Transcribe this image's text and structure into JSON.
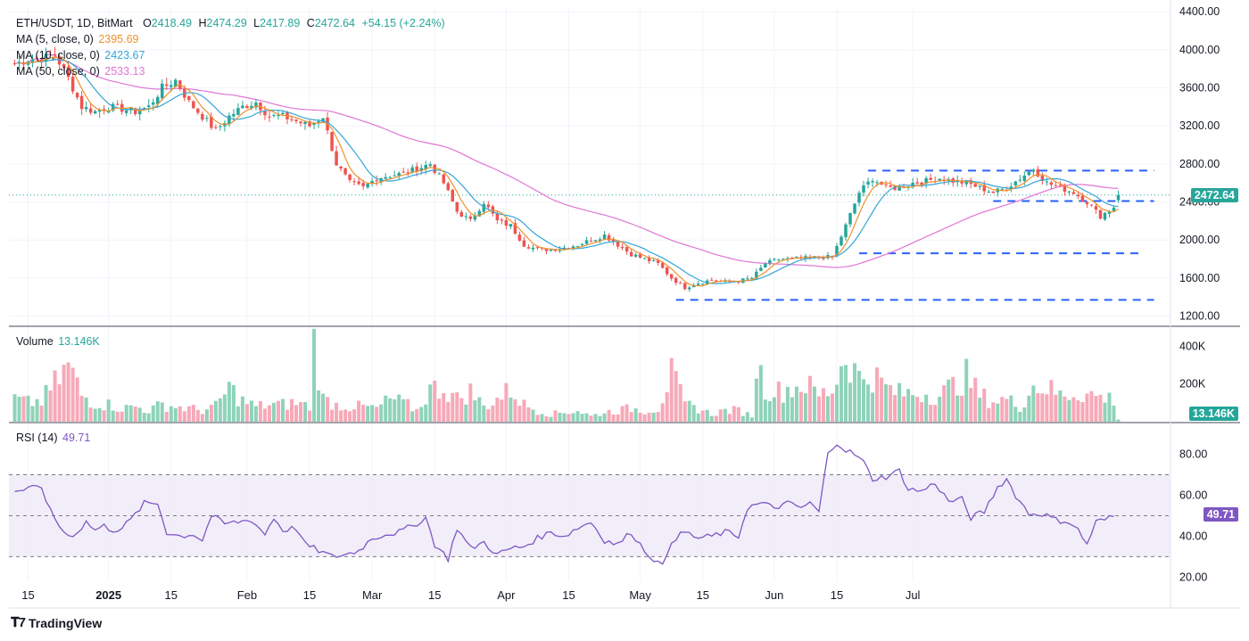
{
  "header": {
    "symbol": "ETH/USDT, 1D, BitMart",
    "open_label": "O",
    "open": "2418.49",
    "high_label": "H",
    "high": "2474.29",
    "low_label": "L",
    "low": "2417.89",
    "close_label": "C",
    "close": "2472.64",
    "change": "+54.15 (+2.24%)"
  },
  "ma_legend": [
    {
      "label": "MA (5, close, 0)",
      "value": "2395.69",
      "color": "#f0912e"
    },
    {
      "label": "MA (10, close, 0)",
      "value": "2423.67",
      "color": "#35a5d6"
    },
    {
      "label": "MA (50, close, 0)",
      "value": "2533.13",
      "color": "#e075d6"
    }
  ],
  "volume_legend": {
    "label": "Volume",
    "value": "13.146K"
  },
  "rsi_legend": {
    "label": "RSI (14)",
    "value": "49.71"
  },
  "price_badge": "2472.64",
  "volume_badge": "13.146K",
  "rsi_badge": "49.71",
  "brand": "TradingView",
  "colors": {
    "up": "#26a69a",
    "up_light": "#8fd3b9",
    "down": "#ef5350",
    "down_light": "#f7a9b8",
    "ma5": "#f0912e",
    "ma10": "#35a5d6",
    "ma50": "#e075d6",
    "rsi": "#7e57c2",
    "level": "#2962ff"
  },
  "chart_data": {
    "type": "candlestick",
    "series_close_key": [
      [
        0,
        3850
      ],
      [
        3,
        3900
      ],
      [
        6,
        3910
      ],
      [
        9,
        3950
      ],
      [
        12,
        3700
      ],
      [
        15,
        3400
      ],
      [
        18,
        3350
      ],
      [
        21,
        3400
      ],
      [
        24,
        3380
      ],
      [
        27,
        3350
      ],
      [
        30,
        3400
      ],
      [
        33,
        3600
      ],
      [
        36,
        3680
      ],
      [
        39,
        3450
      ],
      [
        42,
        3300
      ],
      [
        45,
        3150
      ],
      [
        48,
        3300
      ],
      [
        51,
        3400
      ],
      [
        54,
        3450
      ],
      [
        57,
        3300
      ],
      [
        60,
        3300
      ],
      [
        63,
        3250
      ],
      [
        66,
        3200
      ],
      [
        69,
        3300
      ],
      [
        72,
        2800
      ],
      [
        75,
        2600
      ],
      [
        78,
        2550
      ],
      [
        81,
        2650
      ],
      [
        84,
        2680
      ],
      [
        87,
        2700
      ],
      [
        90,
        2750
      ],
      [
        93,
        2800
      ],
      [
        96,
        2600
      ],
      [
        99,
        2300
      ],
      [
        102,
        2200
      ],
      [
        105,
        2400
      ],
      [
        108,
        2200
      ],
      [
        111,
        2150
      ],
      [
        114,
        1950
      ],
      [
        117,
        1900
      ],
      [
        120,
        1900
      ],
      [
        123,
        1920
      ],
      [
        126,
        1950
      ],
      [
        129,
        2000
      ],
      [
        132,
        2050
      ],
      [
        135,
        1950
      ],
      [
        138,
        1850
      ],
      [
        141,
        1800
      ],
      [
        144,
        1750
      ],
      [
        147,
        1600
      ],
      [
        150,
        1500
      ],
      [
        153,
        1550
      ],
      [
        156,
        1580
      ],
      [
        159,
        1560
      ],
      [
        162,
        1570
      ],
      [
        165,
        1600
      ],
      [
        168,
        1750
      ],
      [
        171,
        1800
      ],
      [
        174,
        1800
      ],
      [
        177,
        1810
      ],
      [
        180,
        1820
      ],
      [
        183,
        1820
      ],
      [
        186,
        2150
      ],
      [
        189,
        2500
      ],
      [
        192,
        2650
      ],
      [
        195,
        2550
      ],
      [
        198,
        2550
      ],
      [
        201,
        2600
      ],
      [
        204,
        2620
      ],
      [
        207,
        2650
      ],
      [
        210,
        2620
      ],
      [
        213,
        2600
      ],
      [
        216,
        2550
      ],
      [
        219,
        2500
      ],
      [
        222,
        2550
      ],
      [
        225,
        2650
      ],
      [
        228,
        2750
      ],
      [
        231,
        2600
      ],
      [
        234,
        2550
      ],
      [
        237,
        2500
      ],
      [
        240,
        2400
      ],
      [
        243,
        2250
      ],
      [
        246,
        2350
      ],
      [
        247,
        2472.64
      ]
    ],
    "price_axis": {
      "ticks": [
        1200,
        1600,
        2000,
        2400,
        2800,
        3200,
        3600,
        4000,
        4400
      ],
      "tick_labels": [
        "1200.00",
        "1600.00",
        "2000.00",
        "2400.00",
        "2800.00",
        "3200.00",
        "3600.00",
        "4000.00",
        "4400.00"
      ],
      "ylim": [
        1130,
        4430
      ]
    },
    "horizontal_levels": [
      {
        "price": 2730,
        "from_bar": 191,
        "to_bar": 255
      },
      {
        "price": 2410,
        "from_bar": 219,
        "to_bar": 255
      },
      {
        "price": 1860,
        "from_bar": 189,
        "to_bar": 252
      },
      {
        "price": 1370,
        "from_bar": 148,
        "to_bar": 255
      }
    ],
    "volume_axis": {
      "ticks": [
        200000,
        400000
      ],
      "tick_labels": [
        "200K",
        "400K"
      ],
      "ylim": [
        0,
        430000
      ]
    },
    "volume_key": [
      [
        0,
        120
      ],
      [
        3,
        100
      ],
      [
        6,
        110
      ],
      [
        9,
        200
      ],
      [
        11,
        260
      ],
      [
        12,
        300
      ],
      [
        15,
        140
      ],
      [
        18,
        100
      ],
      [
        21,
        90
      ],
      [
        24,
        70
      ],
      [
        27,
        80
      ],
      [
        30,
        60
      ],
      [
        33,
        90
      ],
      [
        36,
        80
      ],
      [
        39,
        70
      ],
      [
        42,
        60
      ],
      [
        45,
        80
      ],
      [
        48,
        180
      ],
      [
        51,
        110
      ],
      [
        54,
        80
      ],
      [
        57,
        90
      ],
      [
        60,
        90
      ],
      [
        63,
        100
      ],
      [
        66,
        80
      ],
      [
        67,
        420
      ],
      [
        69,
        120
      ],
      [
        72,
        90
      ],
      [
        75,
        80
      ],
      [
        78,
        80
      ],
      [
        81,
        70
      ],
      [
        84,
        120
      ],
      [
        87,
        100
      ],
      [
        90,
        60
      ],
      [
        93,
        170
      ],
      [
        96,
        180
      ],
      [
        99,
        120
      ],
      [
        102,
        160
      ],
      [
        105,
        80
      ],
      [
        108,
        120
      ],
      [
        111,
        170
      ],
      [
        114,
        90
      ],
      [
        117,
        60
      ],
      [
        120,
        40
      ],
      [
        123,
        50
      ],
      [
        126,
        60
      ],
      [
        129,
        30
      ],
      [
        132,
        50
      ],
      [
        135,
        60
      ],
      [
        138,
        70
      ],
      [
        141,
        60
      ],
      [
        144,
        70
      ],
      [
        147,
        250
      ],
      [
        150,
        90
      ],
      [
        153,
        70
      ],
      [
        156,
        40
      ],
      [
        159,
        60
      ],
      [
        162,
        60
      ],
      [
        165,
        30
      ],
      [
        166,
        310
      ],
      [
        168,
        180
      ],
      [
        171,
        160
      ],
      [
        174,
        180
      ],
      [
        177,
        200
      ],
      [
        180,
        140
      ],
      [
        183,
        170
      ],
      [
        186,
        360
      ],
      [
        189,
        230
      ],
      [
        192,
        250
      ],
      [
        195,
        180
      ],
      [
        198,
        150
      ],
      [
        201,
        150
      ],
      [
        204,
        150
      ],
      [
        207,
        140
      ],
      [
        210,
        190
      ],
      [
        213,
        240
      ],
      [
        216,
        140
      ],
      [
        219,
        110
      ],
      [
        222,
        120
      ],
      [
        225,
        80
      ],
      [
        228,
        190
      ],
      [
        231,
        180
      ],
      [
        234,
        140
      ],
      [
        237,
        150
      ],
      [
        240,
        150
      ],
      [
        243,
        130
      ],
      [
        246,
        120
      ],
      [
        247,
        13
      ]
    ],
    "rsi_axis": {
      "ticks": [
        20,
        40,
        60,
        80
      ],
      "tick_labels": [
        "20.00",
        "40.00",
        "60.00",
        "80.00"
      ],
      "ylim": [
        18,
        92
      ],
      "bands": [
        30,
        50,
        70
      ]
    },
    "rsi_key": [
      [
        0,
        62
      ],
      [
        3,
        63
      ],
      [
        6,
        64
      ],
      [
        8,
        52
      ],
      [
        10,
        45
      ],
      [
        12,
        40
      ],
      [
        14,
        42
      ],
      [
        16,
        47
      ],
      [
        18,
        43
      ],
      [
        20,
        45
      ],
      [
        22,
        43
      ],
      [
        24,
        44
      ],
      [
        26,
        48
      ],
      [
        29,
        56
      ],
      [
        32,
        56
      ],
      [
        34,
        42
      ],
      [
        37,
        40
      ],
      [
        40,
        41
      ],
      [
        42,
        38
      ],
      [
        44,
        50
      ],
      [
        47,
        46
      ],
      [
        50,
        47
      ],
      [
        53,
        48
      ],
      [
        56,
        41
      ],
      [
        58,
        49
      ],
      [
        60,
        43
      ],
      [
        63,
        44
      ],
      [
        65,
        36
      ],
      [
        68,
        33
      ],
      [
        71,
        30
      ],
      [
        74,
        31
      ],
      [
        77,
        33
      ],
      [
        80,
        39
      ],
      [
        83,
        41
      ],
      [
        86,
        42
      ],
      [
        89,
        45
      ],
      [
        92,
        49
      ],
      [
        94,
        36
      ],
      [
        97,
        29
      ],
      [
        99,
        44
      ],
      [
        102,
        34
      ],
      [
        105,
        37
      ],
      [
        108,
        31
      ],
      [
        111,
        34
      ],
      [
        114,
        35
      ],
      [
        117,
        39
      ],
      [
        120,
        42
      ],
      [
        123,
        40
      ],
      [
        126,
        44
      ],
      [
        129,
        47
      ],
      [
        132,
        38
      ],
      [
        135,
        36
      ],
      [
        138,
        42
      ],
      [
        141,
        33
      ],
      [
        144,
        27
      ],
      [
        145,
        25
      ],
      [
        147,
        38
      ],
      [
        150,
        42
      ],
      [
        153,
        39
      ],
      [
        156,
        40
      ],
      [
        159,
        42
      ],
      [
        162,
        40
      ],
      [
        164,
        54
      ],
      [
        167,
        56
      ],
      [
        170,
        54
      ],
      [
        173,
        56
      ],
      [
        176,
        54
      ],
      [
        178,
        56
      ],
      [
        180,
        52
      ],
      [
        182,
        80
      ],
      [
        184,
        86
      ],
      [
        186,
        82
      ],
      [
        188,
        80
      ],
      [
        190,
        76
      ],
      [
        192,
        68
      ],
      [
        195,
        69
      ],
      [
        198,
        72
      ],
      [
        200,
        63
      ],
      [
        203,
        62
      ],
      [
        206,
        66
      ],
      [
        209,
        57
      ],
      [
        212,
        58
      ],
      [
        214,
        49
      ],
      [
        217,
        52
      ],
      [
        220,
        64
      ],
      [
        222,
        68
      ],
      [
        224,
        60
      ],
      [
        227,
        51
      ],
      [
        230,
        51
      ],
      [
        233,
        48
      ],
      [
        236,
        47
      ],
      [
        238,
        43
      ],
      [
        240,
        36
      ],
      [
        242,
        47
      ],
      [
        244,
        48
      ],
      [
        246,
        49.71
      ]
    ],
    "x_axis": {
      "tick_labels": [
        "15",
        "2025",
        "15",
        "Feb",
        "15",
        "Mar",
        "15",
        "Apr",
        "15",
        "May",
        "15",
        "Jun",
        "15",
        "Jul"
      ],
      "tick_bars": [
        3,
        21,
        35,
        52,
        66,
        80,
        94,
        110,
        124,
        140,
        154,
        170,
        184,
        201
      ]
    },
    "total_bars": 248
  }
}
